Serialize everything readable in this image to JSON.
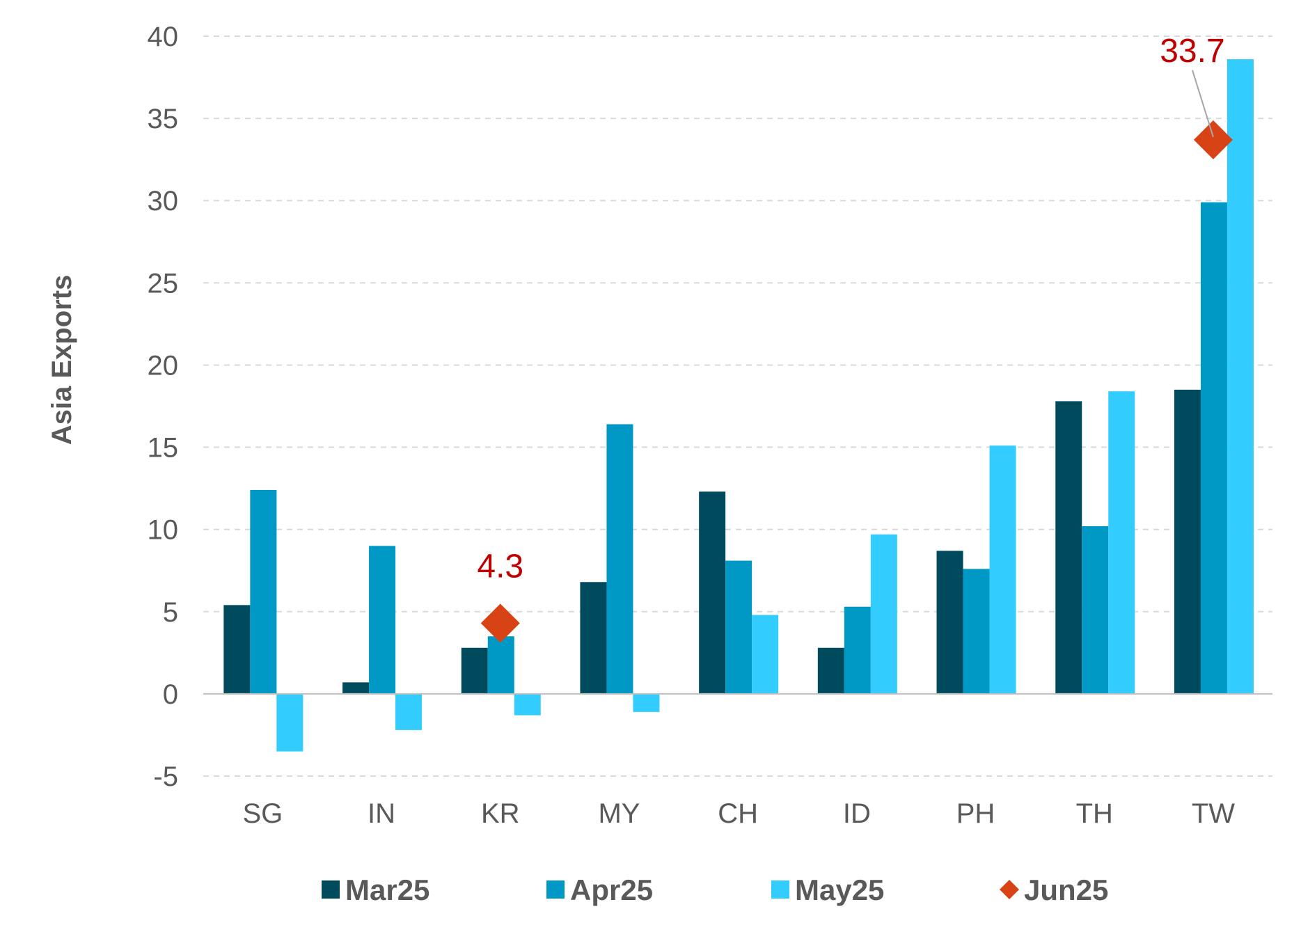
{
  "chart_data": {
    "type": "bar",
    "title": "",
    "xlabel": "",
    "ylabel": "Asia Exports",
    "ylim": [
      -5,
      40
    ],
    "yticks": [
      -5,
      0,
      5,
      10,
      15,
      20,
      25,
      30,
      35,
      40
    ],
    "ytick_labels": [
      "-5",
      "0",
      "5",
      "10",
      "15",
      "20",
      "25",
      "30",
      "35",
      "40"
    ],
    "grid": "horizontal dashed",
    "legend_position": "bottom",
    "categories": [
      "SG",
      "IN",
      "KR",
      "MY",
      "CH",
      "ID",
      "PH",
      "TH",
      "TW"
    ],
    "series": [
      {
        "name": "Mar25",
        "kind": "bar",
        "color": "#004a5e",
        "values": [
          5.4,
          0.7,
          2.8,
          6.8,
          12.3,
          2.8,
          8.7,
          17.8,
          18.5
        ]
      },
      {
        "name": "Apr25",
        "kind": "bar",
        "color": "#0099c6",
        "values": [
          12.4,
          9.0,
          3.5,
          16.4,
          8.1,
          5.3,
          7.6,
          10.2,
          29.9
        ]
      },
      {
        "name": "May25",
        "kind": "bar",
        "color": "#33ccff",
        "values": [
          -3.5,
          -2.2,
          -1.3,
          -1.1,
          4.8,
          9.7,
          15.1,
          18.4,
          38.6
        ]
      },
      {
        "name": "Jun25",
        "kind": "marker",
        "color": "#d84315",
        "values": [
          null,
          null,
          4.3,
          null,
          null,
          null,
          null,
          null,
          33.7
        ]
      }
    ],
    "annotations": [
      {
        "category": "KR",
        "text": "4.3"
      },
      {
        "category": "TW",
        "text": "33.7"
      }
    ]
  }
}
